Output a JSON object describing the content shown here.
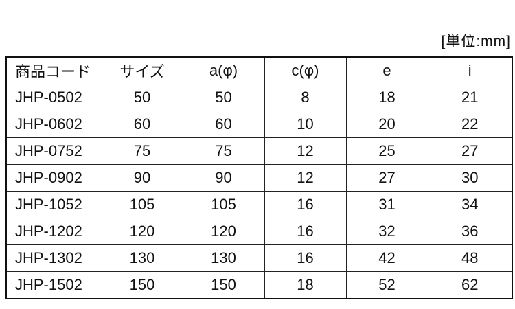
{
  "unit_label": "[単位:mm]",
  "table": {
    "headers": [
      "商品コード",
      "サイズ",
      "a(φ)",
      "c(φ)",
      "e",
      "i"
    ],
    "rows": [
      [
        "JHP-0502",
        "50",
        "50",
        "8",
        "18",
        "21"
      ],
      [
        "JHP-0602",
        "60",
        "60",
        "10",
        "20",
        "22"
      ],
      [
        "JHP-0752",
        "75",
        "75",
        "12",
        "25",
        "27"
      ],
      [
        "JHP-0902",
        "90",
        "90",
        "12",
        "27",
        "30"
      ],
      [
        "JHP-1052",
        "105",
        "105",
        "16",
        "31",
        "34"
      ],
      [
        "JHP-1202",
        "120",
        "120",
        "16",
        "32",
        "36"
      ],
      [
        "JHP-1302",
        "130",
        "130",
        "16",
        "42",
        "48"
      ],
      [
        "JHP-1502",
        "150",
        "150",
        "18",
        "52",
        "62"
      ]
    ]
  }
}
